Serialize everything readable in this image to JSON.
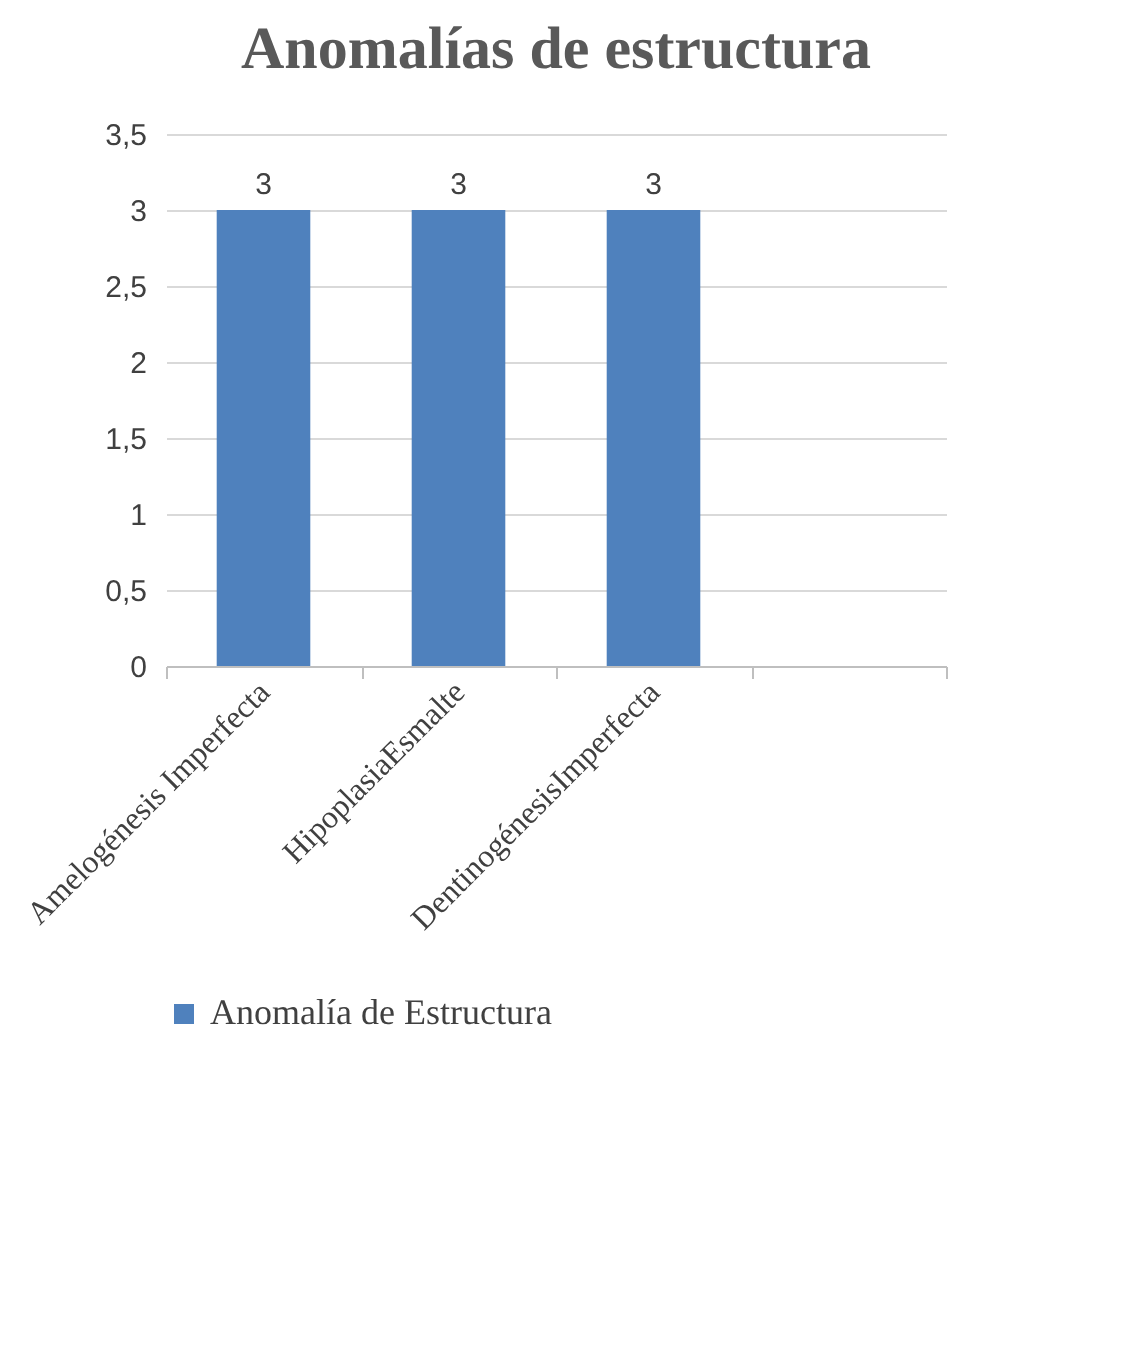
{
  "chart_data": {
    "type": "bar",
    "title": "Anomalías de estructura",
    "categories": [
      "Amelogénesis Imperfecta",
      "HipoplasiaEsmalte",
      "DentinogénesisImperfecta",
      null
    ],
    "series": [
      {
        "name": "Anomalía de Estructura",
        "color": "#4f81bd",
        "values": [
          3,
          3,
          3,
          null
        ]
      }
    ],
    "ylim": [
      0,
      3.5
    ],
    "yticks": [
      0,
      {
        "value": 0.5,
        "label": "0,5"
      },
      1,
      {
        "value": 1.5,
        "label": "1,5"
      },
      2,
      {
        "value": 2.5,
        "label": "2,5"
      },
      3,
      {
        "value": 3.5,
        "label": "3,5"
      }
    ],
    "grid": "y",
    "legend": "bottom",
    "data_labels": true
  }
}
